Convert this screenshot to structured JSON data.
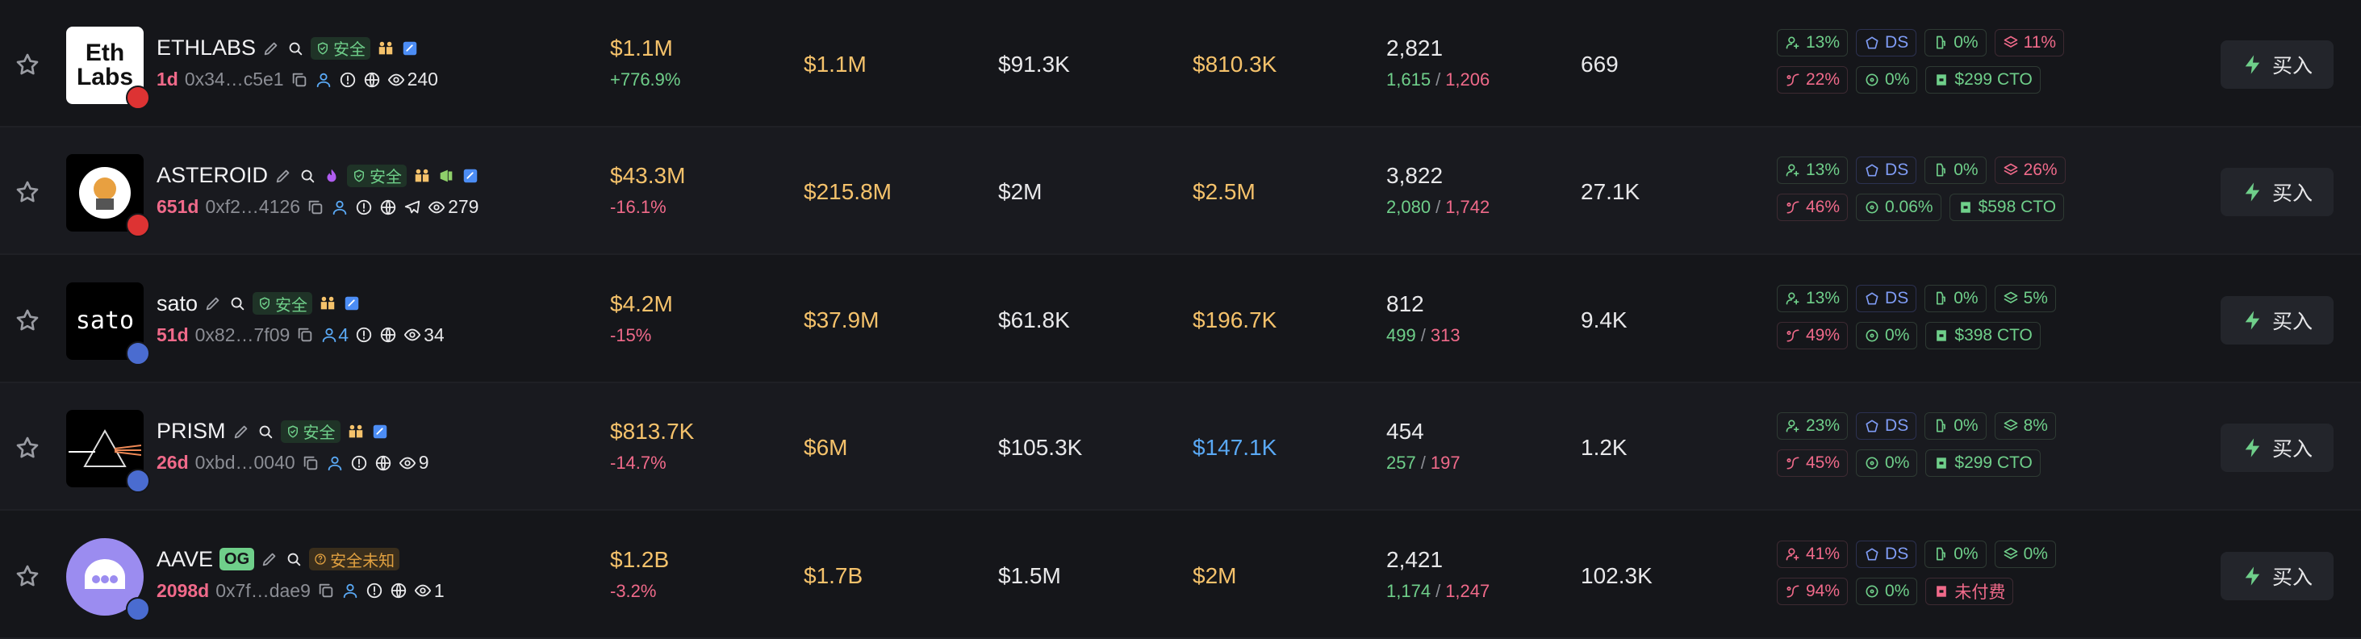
{
  "buy_label": "买入",
  "buy_sell_separator": "/",
  "rows": [
    {
      "logo_text": [
        "Eth",
        "Labs"
      ],
      "name": "ETHLABS",
      "safety": "安全",
      "age": "1d",
      "address": "0x34…c5e1",
      "views": "240",
      "mcap": "$1.1M",
      "change": "+776.9%",
      "liquidity": "$1.1M",
      "volume": "$91.3K",
      "value4": "$810.3K",
      "value4_color": "yellow",
      "holders": "2,821",
      "buys": "1,615",
      "sells": "1,206",
      "col6": "669",
      "badges": [
        {
          "text": "13%",
          "tone": "good"
        },
        {
          "text": "DS",
          "tone": "blue"
        },
        {
          "text": "0%",
          "tone": "good"
        },
        {
          "text": "11%",
          "tone": "bad"
        },
        {
          "text": "22%",
          "tone": "bad"
        },
        {
          "text": "0%",
          "tone": "good"
        },
        {
          "text": "$299 CTO",
          "tone": "good"
        }
      ]
    },
    {
      "name": "ASTEROID",
      "safety": "安全",
      "age": "651d",
      "address": "0xf2…4126",
      "views": "279",
      "mcap": "$43.3M",
      "change": "-16.1%",
      "liquidity": "$215.8M",
      "volume": "$2M",
      "value4": "$2.5M",
      "value4_color": "yellow",
      "holders": "3,822",
      "buys": "2,080",
      "sells": "1,742",
      "col6": "27.1K",
      "badges": [
        {
          "text": "13%",
          "tone": "good"
        },
        {
          "text": "DS",
          "tone": "blue"
        },
        {
          "text": "0%",
          "tone": "good"
        },
        {
          "text": "26%",
          "tone": "bad"
        },
        {
          "text": "46%",
          "tone": "bad"
        },
        {
          "text": "0.06%",
          "tone": "good"
        },
        {
          "text": "$598 CTO",
          "tone": "good"
        }
      ]
    },
    {
      "logo_text": [
        "sato"
      ],
      "name": "sato",
      "safety": "安全",
      "age": "51d",
      "address": "0x82…7f09",
      "holder_count": "4",
      "views": "34",
      "mcap": "$4.2M",
      "change": "-15%",
      "liquidity": "$37.9M",
      "volume": "$61.8K",
      "value4": "$196.7K",
      "value4_color": "yellow",
      "holders": "812",
      "buys": "499",
      "sells": "313",
      "col6": "9.4K",
      "badges": [
        {
          "text": "13%",
          "tone": "good"
        },
        {
          "text": "DS",
          "tone": "blue"
        },
        {
          "text": "0%",
          "tone": "good"
        },
        {
          "text": "5%",
          "tone": "good"
        },
        {
          "text": "49%",
          "tone": "bad"
        },
        {
          "text": "0%",
          "tone": "good"
        },
        {
          "text": "$398 CTO",
          "tone": "good"
        }
      ]
    },
    {
      "name": "PRISM",
      "safety": "安全",
      "age": "26d",
      "address": "0xbd…0040",
      "views": "9",
      "mcap": "$813.7K",
      "change": "-14.7%",
      "liquidity": "$6M",
      "volume": "$105.3K",
      "value4": "$147.1K",
      "value4_color": "blue",
      "holders": "454",
      "buys": "257",
      "sells": "197",
      "col6": "1.2K",
      "badges": [
        {
          "text": "23%",
          "tone": "good"
        },
        {
          "text": "DS",
          "tone": "blue"
        },
        {
          "text": "0%",
          "tone": "good"
        },
        {
          "text": "8%",
          "tone": "good"
        },
        {
          "text": "45%",
          "tone": "bad"
        },
        {
          "text": "0%",
          "tone": "good"
        },
        {
          "text": "$299 CTO",
          "tone": "good"
        }
      ]
    },
    {
      "name": "AAVE",
      "og": "OG",
      "safety": "安全未知",
      "age": "2098d",
      "address": "0x7f…dae9",
      "views": "1",
      "mcap": "$1.2B",
      "change": "-3.2%",
      "liquidity": "$1.7B",
      "volume": "$1.5M",
      "value4": "$2M",
      "value4_color": "yellow",
      "holders": "2,421",
      "buys": "1,174",
      "sells": "1,247",
      "col6": "102.3K",
      "badges": [
        {
          "text": "41%",
          "tone": "bad"
        },
        {
          "text": "DS",
          "tone": "blue"
        },
        {
          "text": "0%",
          "tone": "good"
        },
        {
          "text": "0%",
          "tone": "good"
        },
        {
          "text": "94%",
          "tone": "bad"
        },
        {
          "text": "0%",
          "tone": "good"
        },
        {
          "text": "未付费",
          "tone": "bad"
        }
      ]
    }
  ]
}
